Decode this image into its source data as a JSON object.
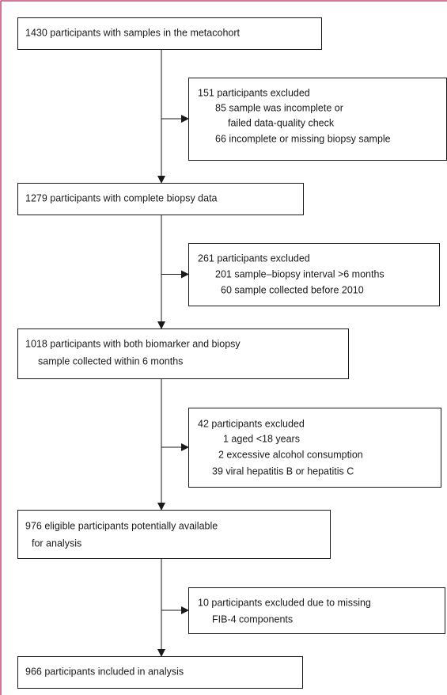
{
  "nodes": [
    {
      "lines": [
        "1430 participants with samples in the metacohort"
      ]
    },
    {
      "lines": [
        "151 participants excluded",
        "85 sample was incomplete or",
        "failed data-quality check",
        "66 incomplete or missing biopsy sample"
      ]
    },
    {
      "lines": [
        "1279 participants with complete biopsy data"
      ]
    },
    {
      "lines": [
        "261 participants excluded",
        "201 sample–biopsy interval >6 months",
        "60 sample collected before 2010"
      ]
    },
    {
      "lines": [
        "1018 participants with both biomarker and biopsy",
        "sample collected within 6 months"
      ]
    },
    {
      "lines": [
        "42 participants excluded",
        "1 aged <18 years",
        "2 excessive alcohol consumption",
        "39 viral hepatitis B or hepatitis C"
      ]
    },
    {
      "lines": [
        "976 eligible participants potentially available",
        "for analysis"
      ]
    },
    {
      "lines": [
        "10 participants excluded due to missing",
        "FIB-4 components"
      ]
    },
    {
      "lines": [
        "966 participants included in analysis"
      ]
    }
  ]
}
